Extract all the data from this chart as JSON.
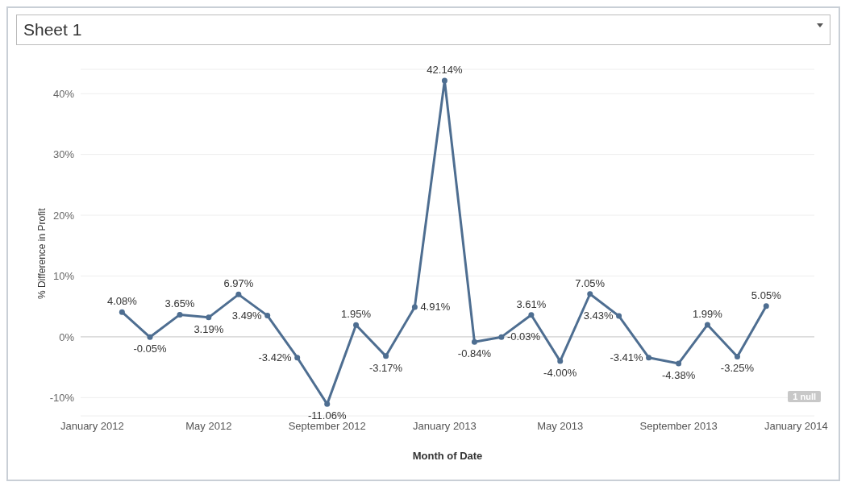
{
  "chart_data": {
    "type": "line",
    "title": "Sheet 1",
    "xlabel": "Month of Date",
    "ylabel": "% Difference in Profit",
    "x": [
      "2012-02",
      "2012-03",
      "2012-04",
      "2012-05",
      "2012-06",
      "2012-07",
      "2012-08",
      "2012-09",
      "2012-10",
      "2012-11",
      "2012-12",
      "2013-01",
      "2013-02",
      "2013-03",
      "2013-04",
      "2013-05",
      "2013-06",
      "2013-07",
      "2013-08",
      "2013-09",
      "2013-10",
      "2013-11",
      "2013-12"
    ],
    "series": [
      {
        "color": "#4e6e91",
        "values": [
          4.08,
          -0.05,
          3.65,
          3.19,
          6.97,
          3.49,
          -3.42,
          -11.06,
          1.95,
          -3.17,
          4.91,
          42.14,
          -0.84,
          -0.03,
          3.61,
          -4.0,
          7.05,
          3.43,
          -3.41,
          -4.38,
          1.99,
          -3.25,
          5.05
        ],
        "value_labels": [
          "4.08%",
          "-0.05%",
          "3.65%",
          "3.19%",
          "6.97%",
          "3.49%",
          "-3.42%",
          "-11.06%",
          "1.95%",
          "-3.17%",
          "4.91%",
          "42.14%",
          "-0.84%",
          "-0.03%",
          "3.61%",
          "-4.00%",
          "7.05%",
          "3.43%",
          "-3.41%",
          "-4.38%",
          "1.99%",
          "-3.25%",
          "5.05%"
        ]
      }
    ],
    "xlim": [
      "2011-12-20",
      "2014-01-20"
    ],
    "xticks": [
      {
        "value": "2012-01-01",
        "label": "January 2012"
      },
      {
        "value": "2012-05-01",
        "label": "May 2012"
      },
      {
        "value": "2012-09-01",
        "label": "September 2012"
      },
      {
        "value": "2013-01-01",
        "label": "January 2013"
      },
      {
        "value": "2013-05-01",
        "label": "May 2013"
      },
      {
        "value": "2013-09-01",
        "label": "September 2013"
      },
      {
        "value": "2014-01-01",
        "label": "January 2014"
      }
    ],
    "ylim": [
      -13,
      44
    ],
    "yticks": [
      {
        "value": -10,
        "label": "-10%"
      },
      {
        "value": 0,
        "label": "0%"
      },
      {
        "value": 10,
        "label": "10%"
      },
      {
        "value": 20,
        "label": "20%"
      },
      {
        "value": 30,
        "label": "30%"
      },
      {
        "value": 40,
        "label": "40%"
      }
    ],
    "grid": "y",
    "marker": "circle",
    "line_style": "solid",
    "legend": false,
    "annotations": [
      "1 null"
    ]
  }
}
